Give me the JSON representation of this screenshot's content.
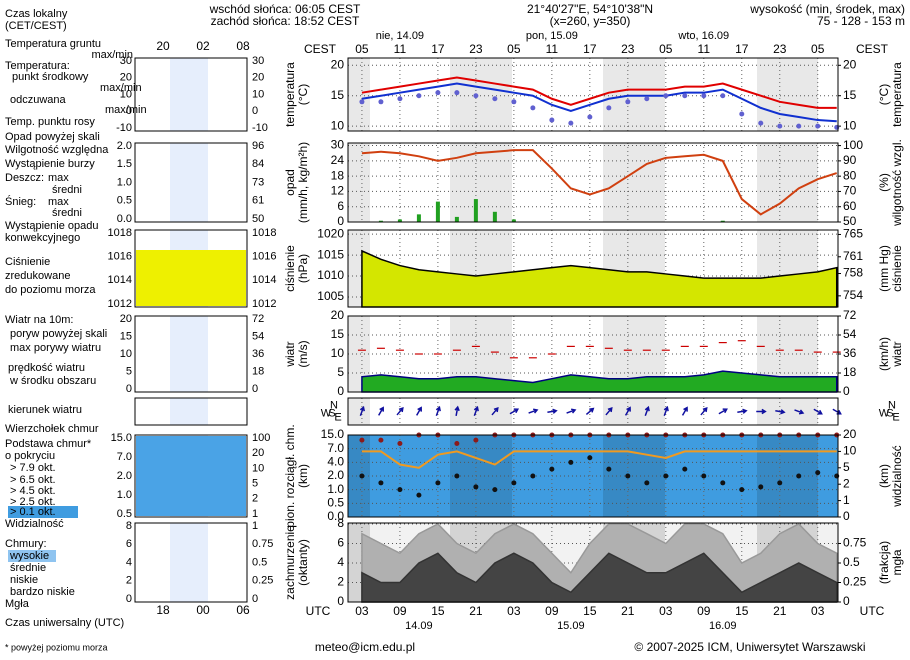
{
  "header": {
    "sunrise": "wschód słońca: 06:05 CEST",
    "sunset": "zachód słońca: 18:52 CEST",
    "coords": "21°40'27\"E, 54°10'38\"N",
    "grid": "(x=260, y=350)",
    "elevation_title": "wysokość (min, środek, max)",
    "elevation": "75 - 128 - 153 m"
  },
  "footer": {
    "email": "meteo@icm.edu.pl",
    "copyright": "© 2007-2025 ICM, Uniwersytet Warszawski"
  },
  "time": {
    "top_label": "CEST",
    "bottom_label": "UTC",
    "xlim": [
      0.8,
      78.2
    ],
    "x": [
      3,
      6,
      9,
      12,
      15,
      18,
      21,
      24,
      27,
      30,
      33,
      36,
      39,
      42,
      45,
      48,
      51,
      54,
      57,
      60,
      63,
      66,
      69,
      72,
      75,
      78
    ],
    "days_top": [
      "nie, 14.09",
      "pon, 15.09",
      "wto, 16.09"
    ],
    "days_bottom": [
      "14.09",
      "15.09",
      "16.09"
    ],
    "xticks_top": [
      {
        "value": 3,
        "label": "05"
      },
      {
        "value": 9,
        "label": "11"
      },
      {
        "value": 15,
        "label": "17"
      },
      {
        "value": 21,
        "label": "23"
      },
      {
        "value": 27,
        "label": "05"
      },
      {
        "value": 33,
        "label": "11"
      },
      {
        "value": 39,
        "label": "17"
      },
      {
        "value": 45,
        "label": "23"
      },
      {
        "value": 51,
        "label": "05"
      },
      {
        "value": 57,
        "label": "11"
      },
      {
        "value": 63,
        "label": "17"
      },
      {
        "value": 69,
        "label": "23"
      },
      {
        "value": 75,
        "label": "05"
      }
    ],
    "xticks_bottom": [
      {
        "value": 3,
        "label": "03"
      },
      {
        "value": 9,
        "label": "09"
      },
      {
        "value": 15,
        "label": "15"
      },
      {
        "value": 21,
        "label": "21"
      },
      {
        "value": 27,
        "label": "03"
      },
      {
        "value": 33,
        "label": "09"
      },
      {
        "value": 39,
        "label": "15"
      },
      {
        "value": 45,
        "label": "21"
      },
      {
        "value": 51,
        "label": "03"
      },
      {
        "value": 57,
        "label": "09"
      },
      {
        "value": 63,
        "label": "15"
      },
      {
        "value": 69,
        "label": "21"
      },
      {
        "value": 75,
        "label": "03"
      }
    ]
  },
  "chart_data": [
    {
      "type": "line",
      "ylabel": "temperatura",
      "yunit": "(°C)",
      "y2label": "temperatura",
      "y2unit": "(°C)",
      "ylim": [
        9.2,
        21.2
      ],
      "yticks": [
        10,
        15,
        20
      ],
      "y2lim": [
        9.2,
        21.2
      ],
      "y2ticks": [
        10,
        15,
        20
      ],
      "grid": true,
      "series": [
        {
          "type": "line",
          "color": "#e00000",
          "values": [
            15.5,
            16,
            16.5,
            17,
            17.5,
            18,
            17.5,
            17,
            16.5,
            16,
            14.5,
            13.5,
            14.5,
            15.5,
            16,
            16,
            16,
            16.5,
            16.5,
            17,
            16,
            15,
            14,
            13.5,
            13,
            13
          ]
        },
        {
          "type": "line",
          "color": "#1030d0",
          "values": [
            14.5,
            15,
            15.5,
            16,
            16.5,
            17,
            16.5,
            16,
            15.5,
            15,
            13.5,
            12.5,
            13.5,
            14.5,
            15,
            15,
            15,
            15.5,
            15.5,
            16,
            14.5,
            13,
            12,
            11.5,
            11,
            10.8
          ]
        },
        {
          "type": "dots",
          "color": "#6060d0",
          "values": [
            14,
            14,
            14.5,
            15,
            15.5,
            15.5,
            15,
            14.5,
            14,
            13,
            11,
            10.5,
            11.5,
            13,
            14,
            14.5,
            15,
            15,
            15,
            15,
            12,
            10.5,
            10,
            10,
            10,
            9.8
          ]
        }
      ]
    },
    {
      "type": "line",
      "ylabel": "opad",
      "yunit": "(mm/h, kg/m²h)",
      "y2label": "wilgotność wzgl.",
      "y2unit": "(%)",
      "ylim": [
        0,
        31
      ],
      "yticks": [
        0,
        6,
        12,
        18,
        24,
        30
      ],
      "y2lim": [
        50,
        101.7
      ],
      "y2ticks": [
        50,
        60,
        70,
        80,
        90,
        100
      ],
      "grid": true,
      "series": [
        {
          "type": "bar",
          "color": "#20a020",
          "values": [
            0,
            0.5,
            1,
            3,
            8,
            2,
            9,
            4,
            1,
            0,
            0,
            0,
            0,
            0,
            0,
            0,
            0,
            0,
            0,
            0.5,
            0,
            0,
            0,
            0,
            0,
            0
          ]
        },
        {
          "type": "line",
          "axis": "y2",
          "color": "#d04010",
          "values": [
            95,
            96,
            95,
            93,
            90,
            92,
            95,
            96,
            97,
            97,
            85,
            72,
            68,
            72,
            80,
            88,
            92,
            93,
            94,
            90,
            65,
            55,
            62,
            72,
            78,
            82
          ]
        }
      ]
    },
    {
      "type": "line",
      "ylabel": "ciśnienie",
      "yunit": "(hPa)",
      "y2label": "ciśnienie",
      "y2unit": "(mm Hg)",
      "ylim": [
        1002.6,
        1021
      ],
      "yticks": [
        1005,
        1010,
        1015,
        1020
      ],
      "y2lim": [
        752,
        765.8
      ],
      "y2ticks": [
        754,
        758,
        761,
        765
      ],
      "grid": true,
      "series": [
        {
          "type": "area",
          "color": "#000000",
          "fill": "#d4e600",
          "values": [
            1016,
            1014,
            1012.5,
            1011.5,
            1011,
            1010.5,
            1010,
            1010.5,
            1011,
            1011.5,
            1012,
            1012.5,
            1012,
            1011.5,
            1011,
            1011,
            1010.5,
            1010,
            1009.5,
            1009.5,
            1009.5,
            1009.5,
            1010,
            1010.5,
            1011,
            1012
          ]
        }
      ]
    },
    {
      "type": "line",
      "ylabel": "wiatr",
      "yunit": "(m/s)",
      "y2label": "wiatr",
      "y2unit": "(km/h)",
      "ylim": [
        0,
        20
      ],
      "yticks": [
        0,
        5,
        10,
        15,
        20
      ],
      "y2lim": [
        0,
        72
      ],
      "y2ticks": [
        0,
        18,
        36,
        54,
        72
      ],
      "grid": true,
      "series": [
        {
          "type": "area",
          "color": "#000080",
          "fill": "#22aa22",
          "values": [
            4,
            4.5,
            4,
            3.5,
            3.5,
            4,
            4,
            3.5,
            3,
            2.5,
            3.5,
            4.5,
            4,
            3.5,
            3.5,
            4,
            4,
            4,
            4.5,
            5.5,
            5,
            4.5,
            4,
            4,
            4,
            4
          ]
        },
        {
          "type": "dash",
          "color": "#cc0000",
          "values": [
            11,
            11.5,
            11,
            10,
            10,
            11,
            12,
            10.5,
            9,
            9,
            10,
            12,
            12,
            11.5,
            11,
            11,
            11,
            12,
            12,
            13,
            13.5,
            12,
            11,
            11,
            10.5,
            10.5
          ]
        }
      ]
    },
    {
      "type": "arrows",
      "compass": [
        "N",
        "W",
        "S",
        "E"
      ],
      "series": [
        {
          "type": "arrows",
          "color": "#1010a0",
          "values": [
            200,
            210,
            220,
            210,
            200,
            190,
            200,
            220,
            240,
            250,
            260,
            250,
            230,
            220,
            210,
            200,
            200,
            210,
            220,
            240,
            260,
            270,
            280,
            290,
            300,
            300
          ]
        }
      ]
    },
    {
      "type": "line",
      "ylabel": "pion. rozciągł. chm.",
      "yunit": "(km)",
      "y2label": "widzialność",
      "y2unit": "(km)",
      "yscale": "piecewise",
      "background": "#3f9ce0",
      "ylim": [
        0,
        15
      ],
      "yticks": [
        {
          "value": 0,
          "label": "0.0"
        },
        {
          "value": 0.5,
          "label": "0.5"
        },
        {
          "value": 1,
          "label": "1.0"
        },
        {
          "value": 2,
          "label": "2.0"
        },
        {
          "value": 4,
          "label": "4.0"
        },
        {
          "value": 7,
          "label": "7.0"
        },
        {
          "value": 15,
          "label": "15.0"
        }
      ],
      "y2lim": [
        0,
        20
      ],
      "y2ticks": [
        0,
        1,
        2,
        5,
        10,
        20
      ],
      "grid": true,
      "series": [
        {
          "type": "dots",
          "color": "#8b1a1a",
          "values": [
            12,
            12,
            10,
            15,
            15,
            10,
            12,
            15,
            15,
            15,
            15,
            15,
            15,
            15,
            15,
            15,
            15,
            15,
            15,
            15,
            15,
            15,
            15,
            15,
            15,
            15
          ]
        },
        {
          "type": "dots",
          "color": "#111111",
          "values": [
            2,
            1.5,
            1,
            0.8,
            1.5,
            2,
            1.2,
            1,
            1.5,
            2,
            3,
            4,
            5,
            3,
            2,
            1.5,
            2,
            3,
            2,
            1.5,
            1,
            1.2,
            1.5,
            2,
            2.5,
            2
          ]
        },
        {
          "type": "line",
          "axis": "y2",
          "color": "#f09a20",
          "values": [
            10,
            10,
            6,
            5,
            9,
            10,
            8,
            6,
            10,
            10,
            10,
            10,
            10,
            10,
            10,
            9,
            8,
            10,
            10,
            10,
            10,
            10,
            10,
            10,
            10,
            10
          ]
        }
      ]
    },
    {
      "type": "line",
      "ylabel": "zachmurzenie",
      "yunit": "(oktanty)",
      "y2label": "mgła",
      "y2unit": "(frakcja)",
      "background": "#f2f2f2",
      "ylim": [
        0,
        8.1
      ],
      "yticks": [
        0,
        2,
        4,
        6,
        8
      ],
      "y2lim": [
        0,
        1.0125
      ],
      "y2ticks": [
        0,
        {
          "value": 0.25,
          "label": "0.25"
        },
        {
          "value": 0.5,
          "label": "0.5"
        },
        {
          "value": 0.75,
          "label": "0.75"
        }
      ],
      "grid": true,
      "series": [
        {
          "type": "area",
          "color": "#999999",
          "fill": "#b0b0b0",
          "values": [
            7,
            6,
            5,
            7,
            8,
            6,
            5,
            7,
            8,
            7,
            5,
            3,
            6,
            8,
            8,
            7,
            6,
            8,
            8,
            7,
            4,
            5,
            7,
            8,
            6,
            5
          ]
        },
        {
          "type": "area",
          "color": "#333333",
          "fill": "#444444",
          "values": [
            3,
            2,
            2,
            4,
            5,
            3,
            2,
            4,
            5,
            4,
            2,
            1,
            3,
            5,
            4,
            3,
            3,
            4,
            5,
            3,
            1,
            2,
            3,
            4,
            3,
            2
          ]
        }
      ]
    }
  ],
  "legend": {
    "texts": [
      "Czas lokalny",
      "(CET/CEST)",
      "Temperatura gruntu",
      "max/min",
      "Temperatura:",
      "punkt środkowy",
      "max/min",
      "odczuwana",
      "max/min",
      "Temp. punktu rosy",
      "Opad powyżej skali",
      "Wilgotność względna",
      "Wystąpienie burzy",
      "Deszcz:",
      "max",
      "średni",
      "Śnieg:",
      "max",
      "średni",
      "Wystąpienie opadu",
      "konwekcyjnego",
      "Ciśnienie",
      "zredukowane",
      "do poziomu morza",
      "Wiatr na 10m:",
      "poryw powyżej skali",
      "max porywy wiatru",
      "prędkość wiatru",
      "w środku obszaru",
      "kierunek wiatru",
      "Wierzchołek chmur",
      "Podstawa chmur*",
      "o pokryciu",
      "> 7.9 okt.",
      "> 6.5 okt.",
      "> 4.5 okt.",
      "> 2.5 okt.",
      "> 0.1 okt.",
      "Widzialność",
      "Chmury:",
      "wysokie",
      "średnie",
      "niskie",
      "bardzo niskie",
      "Mgła",
      "Czas uniwersalny (UTC)",
      "* powyżej poziomu morza"
    ],
    "time_top": [
      "20",
      "02",
      "08"
    ],
    "time_bottom": [
      "18",
      "00",
      "06"
    ],
    "ticks": [
      {
        "left": [
          "30",
          "20",
          "10",
          "0",
          "-10"
        ],
        "right": [
          "30",
          "20",
          "10",
          "0",
          "-10"
        ]
      },
      {
        "left": [
          "2.0",
          "1.5",
          "1.0",
          "0.5",
          "0.0"
        ],
        "right": [
          "96",
          "84",
          "73",
          "61",
          "50"
        ]
      },
      {
        "left": [
          "1018",
          "1016",
          "1014",
          "1012"
        ],
        "right": [
          "1018",
          "1016",
          "1014",
          "1012"
        ]
      },
      {
        "left": [
          "20",
          "15",
          "10",
          "5",
          "0"
        ],
        "right": [
          "72",
          "54",
          "36",
          "18",
          "0"
        ]
      },
      {
        "left": [
          "15.0",
          "7.0",
          "2.0",
          "1.0",
          "0.5"
        ],
        "right": [
          "100",
          "20",
          "10",
          "5",
          "2",
          "1"
        ]
      },
      {
        "left": [
          "8",
          "6",
          "4",
          "2",
          "0"
        ],
        "right": [
          "1",
          "0.75",
          "0.5",
          "0.25",
          "0"
        ]
      }
    ]
  }
}
